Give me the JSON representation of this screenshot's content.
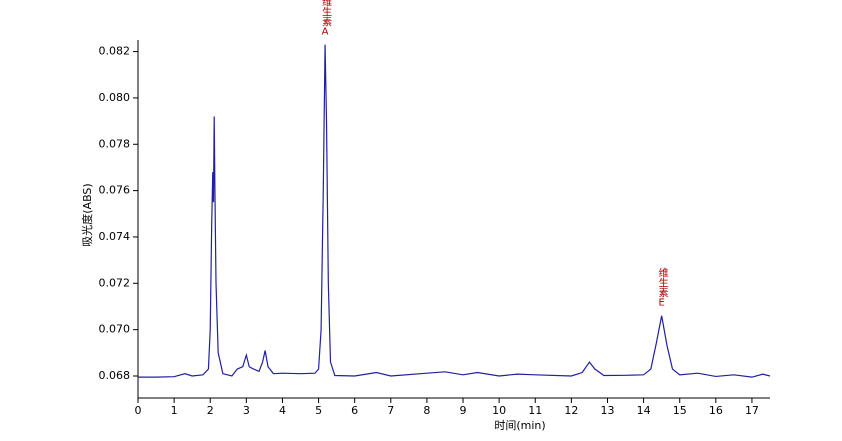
{
  "chart_data": {
    "type": "line",
    "x_label": "时间(min)",
    "y_label": "吸光度(ABS)",
    "x": [
      0,
      0.5,
      1,
      1.3,
      1.5,
      1.8,
      1.95,
      2.0,
      2.04,
      2.07,
      2.09,
      2.11,
      2.13,
      2.16,
      2.22,
      2.35,
      2.6,
      2.75,
      2.9,
      3.0,
      3.08,
      3.2,
      3.35,
      3.45,
      3.52,
      3.6,
      3.75,
      4,
      4.5,
      4.9,
      5.0,
      5.07,
      5.13,
      5.18,
      5.22,
      5.27,
      5.33,
      5.45,
      6,
      6.6,
      7,
      8,
      8.5,
      9,
      9.4,
      10,
      10.5,
      11,
      12,
      12.3,
      12.5,
      12.65,
      12.9,
      13.5,
      14,
      14.2,
      14.35,
      14.5,
      14.65,
      14.8,
      15,
      15.5,
      16,
      16.5,
      17,
      17.3,
      17.5
    ],
    "series": [
      {
        "color": "#2020a0",
        "values": [
          0.06795,
          0.06795,
          0.06797,
          0.0681,
          0.068,
          0.06805,
          0.0683,
          0.07,
          0.0745,
          0.0768,
          0.0755,
          0.0792,
          0.076,
          0.072,
          0.069,
          0.0681,
          0.068,
          0.0683,
          0.0684,
          0.0689,
          0.0684,
          0.0683,
          0.0682,
          0.0686,
          0.0691,
          0.0684,
          0.0681,
          0.06812,
          0.0681,
          0.06812,
          0.0683,
          0.07,
          0.076,
          0.0823,
          0.079,
          0.072,
          0.0686,
          0.06802,
          0.068,
          0.06815,
          0.068,
          0.06812,
          0.06818,
          0.06805,
          0.06815,
          0.068,
          0.06808,
          0.06805,
          0.068,
          0.06815,
          0.0686,
          0.0683,
          0.06802,
          0.06803,
          0.06805,
          0.0683,
          0.0694,
          0.0706,
          0.0693,
          0.0683,
          0.06805,
          0.06812,
          0.06798,
          0.06805,
          0.06795,
          0.06808,
          0.068
        ]
      }
    ],
    "annotations": [
      {
        "text": "维生素A",
        "x": 5.18,
        "y": 0.0823
      },
      {
        "text": "维生素E",
        "x": 14.5,
        "y": 0.0706
      }
    ],
    "xlim": [
      0,
      17.5
    ],
    "ylim": [
      0.06705,
      0.0825
    ],
    "xticks": [
      0,
      1,
      2,
      3,
      4,
      5,
      6,
      7,
      8,
      9,
      10,
      11,
      12,
      13,
      14,
      15,
      16,
      17
    ],
    "yticks": [
      0.068,
      {
        "value": 0.07,
        "label": "0.070"
      },
      0.072,
      0.074,
      0.076,
      0.078,
      {
        "value": 0.08,
        "label": "0.080"
      },
      0.082
    ]
  }
}
